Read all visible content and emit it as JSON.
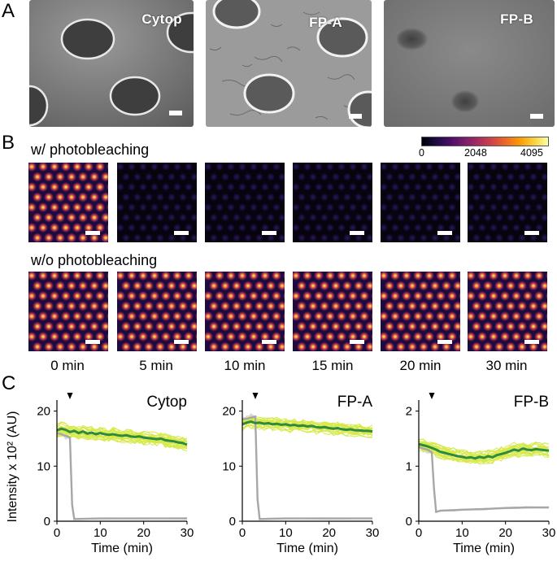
{
  "panels": {
    "a": "A",
    "b": "B",
    "c": "C"
  },
  "sem_images": [
    {
      "label": "Cytop"
    },
    {
      "label": "FP-A"
    },
    {
      "label": "FP-B"
    }
  ],
  "rows": {
    "with": "w/ photobleaching",
    "without": "w/o photobleaching"
  },
  "colorbar": {
    "min": "0",
    "mid": "2048",
    "max": "4095"
  },
  "timepoints": [
    "0 min",
    "5 min",
    "10 min",
    "15 min",
    "20 min",
    "30 min"
  ],
  "ylabel": "Intensity x 10² (AU)",
  "chart_data": [
    {
      "type": "line",
      "title": "Cytop",
      "xlabel": "Time (min)",
      "xlim": [
        0,
        30
      ],
      "ylim": [
        0,
        22
      ],
      "xticks": [
        "0",
        "10",
        "20",
        "30"
      ],
      "yticks": [
        "0",
        "10",
        "20"
      ],
      "yticks_values": [
        0,
        10,
        20
      ],
      "arrow_x": 3,
      "colors": {
        "green": "#2e8b3c",
        "gray": "#a7a7a7",
        "yellow": "#d7e94a",
        "lightgray": "#d6d6d6"
      },
      "series": [
        {
          "x": [
            0,
            1,
            2,
            3,
            4,
            5,
            6,
            7,
            8,
            9,
            10,
            11,
            12,
            13,
            14,
            15,
            16,
            17,
            18,
            19,
            20,
            21,
            22,
            23,
            24,
            25,
            26,
            27,
            28,
            29,
            30
          ],
          "y": [
            16.5,
            16.8,
            16.6,
            16.2,
            16.4,
            16.0,
            16.3,
            15.9,
            16.1,
            15.8,
            16.0,
            15.8,
            15.7,
            15.8,
            15.6,
            15.5,
            15.6,
            15.4,
            15.3,
            15.4,
            15.2,
            15.1,
            15.0,
            14.9,
            15.0,
            14.7,
            14.6,
            14.5,
            14.3,
            14.2,
            13.9
          ]
        },
        {
          "x": [
            0,
            1,
            2,
            3,
            3.5,
            4,
            10,
            20,
            30
          ],
          "y": [
            16.0,
            15.8,
            15.5,
            15.2,
            3.0,
            0.4,
            0.5,
            0.5,
            0.5
          ]
        }
      ]
    },
    {
      "type": "line",
      "title": "FP-A",
      "xlabel": "Time (min)",
      "xlim": [
        0,
        30
      ],
      "ylim": [
        0,
        22
      ],
      "xticks": [
        "0",
        "10",
        "20",
        "30"
      ],
      "yticks": [
        "0",
        "10",
        "20"
      ],
      "yticks_values": [
        0,
        10,
        20
      ],
      "arrow_x": 3,
      "colors": {
        "green": "#2e8b3c",
        "gray": "#a7a7a7",
        "yellow": "#d7e94a",
        "lightgray": "#d6d6d6"
      },
      "series": [
        {
          "x": [
            0,
            1,
            2,
            3,
            4,
            5,
            6,
            7,
            8,
            9,
            10,
            11,
            12,
            13,
            14,
            15,
            16,
            17,
            18,
            19,
            20,
            21,
            22,
            23,
            24,
            25,
            26,
            27,
            28,
            29,
            30
          ],
          "y": [
            17.6,
            17.9,
            18.1,
            17.8,
            17.9,
            17.7,
            17.8,
            17.6,
            17.7,
            17.5,
            17.6,
            17.4,
            17.5,
            17.3,
            17.4,
            17.2,
            17.3,
            17.1,
            17.0,
            17.1,
            16.9,
            16.8,
            16.9,
            16.7,
            16.6,
            16.7,
            16.5,
            16.5,
            16.4,
            16.4,
            16.3
          ]
        },
        {
          "x": [
            0,
            1,
            2,
            3,
            3.5,
            4,
            10,
            20,
            30
          ],
          "y": [
            18.5,
            18.6,
            18.8,
            19.0,
            4.0,
            0.4,
            0.5,
            0.5,
            0.5
          ]
        }
      ]
    },
    {
      "type": "line",
      "title": "FP-B",
      "xlabel": "Time (min)",
      "xlim": [
        0,
        30
      ],
      "ylim": [
        0,
        2.2
      ],
      "xticks": [
        "0",
        "10",
        "20",
        "30"
      ],
      "yticks": [
        "0",
        "1",
        "2"
      ],
      "yticks_values": [
        0,
        1,
        2
      ],
      "arrow_x": 3,
      "colors": {
        "green": "#2e8b3c",
        "gray": "#a7a7a7",
        "yellow": "#d7e94a",
        "lightgray": "#d6d6d6"
      },
      "series": [
        {
          "x": [
            0,
            1,
            2,
            3,
            4,
            5,
            6,
            7,
            8,
            9,
            10,
            11,
            12,
            13,
            14,
            15,
            16,
            17,
            18,
            19,
            20,
            21,
            22,
            23,
            24,
            25,
            26,
            27,
            28,
            29,
            30
          ],
          "y": [
            1.4,
            1.38,
            1.36,
            1.33,
            1.3,
            1.26,
            1.24,
            1.22,
            1.2,
            1.18,
            1.17,
            1.15,
            1.16,
            1.14,
            1.17,
            1.15,
            1.18,
            1.16,
            1.2,
            1.22,
            1.24,
            1.27,
            1.3,
            1.28,
            1.32,
            1.3,
            1.29,
            1.31,
            1.3,
            1.29,
            1.28
          ]
        },
        {
          "x": [
            0,
            1,
            2,
            3,
            3.5,
            4,
            5,
            8,
            10,
            15,
            20,
            25,
            30
          ],
          "y": [
            1.35,
            1.32,
            1.3,
            1.25,
            0.6,
            0.17,
            0.19,
            0.2,
            0.21,
            0.22,
            0.24,
            0.25,
            0.25
          ]
        }
      ]
    }
  ]
}
